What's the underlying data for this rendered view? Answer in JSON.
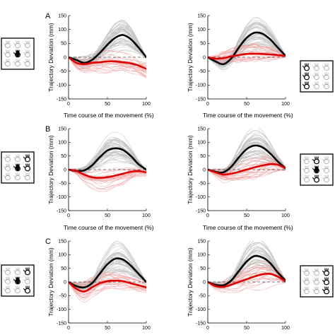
{
  "figure": {
    "rows": [
      {
        "letter": "A",
        "xlabel": "Time course of the movement (%)"
      },
      {
        "letter": "B",
        "xlabel": "Time course of the movement (%)"
      },
      {
        "letter": "C",
        "xlabel": ""
      }
    ],
    "ylabel": "Trajectory Deviation (mm)"
  },
  "colors": {
    "mean_line": "#000000",
    "red_mean": "#e00000",
    "red_trials": "#f2a0a0",
    "gray_trials": "#bdbdbd",
    "zero_line": "#000000",
    "icon_highlight": "#000000",
    "icon_default": "#9e9e9e"
  },
  "chart_data": [
    {
      "id": "A-left",
      "type": "line",
      "x": [
        0,
        10,
        20,
        30,
        40,
        50,
        60,
        70,
        80,
        90,
        100
      ],
      "xlim": [
        0,
        100
      ],
      "ylim": [
        -150,
        150
      ],
      "xticks": [
        0,
        50,
        100
      ],
      "yticks": [
        -150,
        -100,
        -50,
        0,
        50,
        100,
        150
      ],
      "series": [
        {
          "values": [
            0,
            -10,
            -20,
            -10,
            15,
            45,
            70,
            80,
            65,
            35,
            0
          ]
        },
        {
          "values": [
            0,
            -20,
            -25,
            -20,
            -18,
            -15,
            -15,
            -18,
            -22,
            -30,
            -42
          ]
        }
      ]
    },
    {
      "id": "A-right",
      "type": "line",
      "x": [
        0,
        10,
        20,
        30,
        40,
        50,
        60,
        70,
        80,
        90,
        100
      ],
      "xlim": [
        0,
        100
      ],
      "ylim": [
        -150,
        150
      ],
      "xticks": [
        0,
        50,
        100
      ],
      "yticks": [
        -150,
        -100,
        -50,
        0,
        50,
        100,
        150
      ],
      "series": [
        {
          "values": [
            0,
            -15,
            -25,
            -5,
            35,
            70,
            88,
            85,
            65,
            35,
            5
          ]
        },
        {
          "values": [
            0,
            -5,
            -3,
            3,
            8,
            12,
            13,
            12,
            10,
            8,
            5
          ]
        }
      ]
    },
    {
      "id": "B-left",
      "type": "line",
      "x": [
        0,
        10,
        20,
        30,
        40,
        50,
        60,
        70,
        80,
        90,
        100
      ],
      "xlim": [
        0,
        100
      ],
      "ylim": [
        -150,
        150
      ],
      "xticks": [
        0,
        50,
        100
      ],
      "yticks": [
        -150,
        -100,
        -50,
        0,
        50,
        100,
        150
      ],
      "series": [
        {
          "values": [
            0,
            -5,
            -3,
            15,
            45,
            70,
            78,
            72,
            50,
            20,
            0
          ]
        },
        {
          "values": [
            0,
            -5,
            -18,
            -28,
            -30,
            -28,
            -22,
            -15,
            -8,
            -5,
            -10
          ]
        }
      ]
    },
    {
      "id": "B-right",
      "type": "line",
      "x": [
        0,
        10,
        20,
        30,
        40,
        50,
        60,
        70,
        80,
        90,
        100
      ],
      "xlim": [
        0,
        100
      ],
      "ylim": [
        -150,
        150
      ],
      "xticks": [
        0,
        50,
        100
      ],
      "yticks": [
        -150,
        -100,
        -50,
        0,
        50,
        100,
        150
      ],
      "series": [
        {
          "values": [
            0,
            -8,
            -10,
            10,
            45,
            75,
            88,
            82,
            60,
            30,
            5
          ]
        },
        {
          "values": [
            0,
            -10,
            -18,
            -15,
            -8,
            0,
            8,
            15,
            20,
            18,
            5
          ]
        }
      ]
    },
    {
      "id": "C-left",
      "type": "line",
      "x": [
        0,
        10,
        20,
        30,
        40,
        50,
        60,
        70,
        80,
        90,
        100
      ],
      "xlim": [
        0,
        100
      ],
      "ylim": [
        -150,
        150
      ],
      "xticks": [
        0,
        50,
        100
      ],
      "yticks": [
        -150,
        -100,
        -50,
        0,
        50,
        100,
        150
      ],
      "series": [
        {
          "values": [
            0,
            -15,
            -20,
            -5,
            30,
            65,
            85,
            82,
            60,
            30,
            0
          ]
        },
        {
          "values": [
            0,
            -25,
            -35,
            -20,
            -5,
            3,
            5,
            3,
            -5,
            -12,
            -20
          ]
        }
      ]
    },
    {
      "id": "C-right",
      "type": "line",
      "x": [
        0,
        10,
        20,
        30,
        40,
        50,
        60,
        70,
        80,
        90,
        100
      ],
      "xlim": [
        0,
        100
      ],
      "ylim": [
        -150,
        150
      ],
      "xticks": [
        0,
        50,
        100
      ],
      "yticks": [
        -150,
        -100,
        -50,
        0,
        50,
        100,
        150
      ],
      "series": [
        {
          "values": [
            0,
            -10,
            -12,
            5,
            40,
            75,
            95,
            90,
            70,
            35,
            5
          ]
        },
        {
          "values": [
            0,
            -15,
            -18,
            -10,
            0,
            10,
            20,
            28,
            30,
            20,
            2
          ]
        }
      ]
    }
  ],
  "icons": [
    {
      "id": "icon-A-left",
      "highlight": [
        4
      ]
    },
    {
      "id": "icon-A-right",
      "highlight": [
        0,
        3,
        6
      ]
    },
    {
      "id": "icon-B-left",
      "highlight": [
        2,
        4,
        5
      ]
    },
    {
      "id": "icon-B-right",
      "highlight": [
        1,
        4,
        7
      ]
    },
    {
      "id": "icon-C-left",
      "highlight": [
        2,
        4,
        8
      ]
    },
    {
      "id": "icon-C-right",
      "highlight": [
        2,
        5,
        8
      ]
    }
  ]
}
